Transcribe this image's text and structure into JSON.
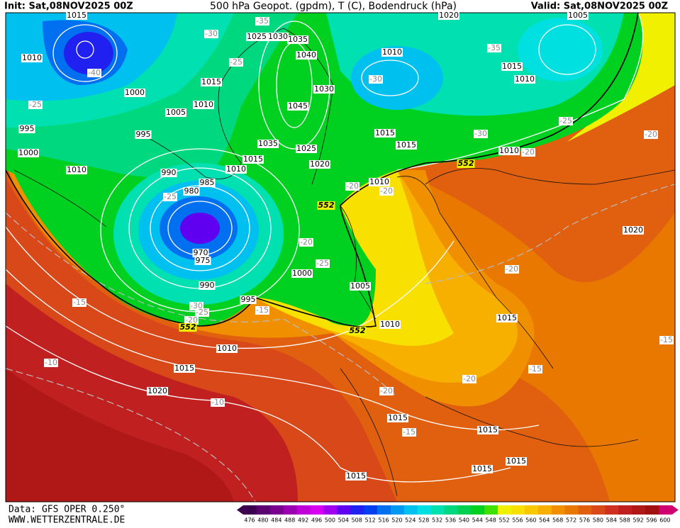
{
  "header": {
    "init": "Init: Sat,08NOV2025 00Z",
    "title": "500 hPa Geopot. (gpdm), T (C), Bodendruck (hPa)",
    "valid": "Valid: Sat,08NOV2025 00Z"
  },
  "footer": {
    "source": "Data: GFS OPER 0.250°",
    "website": "WWW.WETTERZENTRALE.DE"
  },
  "colorbar": {
    "labels": [
      476,
      480,
      484,
      488,
      492,
      496,
      500,
      504,
      508,
      512,
      516,
      520,
      524,
      528,
      532,
      536,
      540,
      544,
      548,
      552,
      556,
      560,
      564,
      568,
      572,
      576,
      580,
      584,
      588,
      592,
      596,
      600
    ],
    "colors": [
      "#3c0050",
      "#5a0070",
      "#7a0090",
      "#9a00b0",
      "#c000d8",
      "#d800f0",
      "#a000f0",
      "#6000f0",
      "#2020f0",
      "#0040f0",
      "#0070f0",
      "#0098f0",
      "#00c0f0",
      "#00e0e0",
      "#00e0b0",
      "#00d880",
      "#00d050",
      "#00d020",
      "#40e000",
      "#f0f000",
      "#f8e000",
      "#f8c800",
      "#f8b000",
      "#f09000",
      "#e87800",
      "#e06010",
      "#d84818",
      "#d03020",
      "#c02020",
      "#b01818",
      "#a01010",
      "#d00070"
    ]
  },
  "map_labels": {
    "pressure": [
      1015,
      1010,
      1000,
      1005,
      1010,
      1015,
      995,
      1000,
      1010,
      995,
      990,
      985,
      980,
      970,
      975,
      990,
      995,
      1000,
      1005,
      1010,
      1010,
      1015,
      1020,
      1015,
      1015,
      1015,
      1015,
      1015,
      1015,
      1020,
      1010,
      1015,
      1015,
      1020,
      1025,
      1035,
      1015,
      1010,
      1045,
      1030,
      1040,
      1035,
      1025,
      1030,
      1010,
      1015,
      1010,
      1020,
      1005,
      1010
    ],
    "temperature": [
      -30,
      -25,
      -35,
      -40,
      -25,
      -25,
      -20,
      -25,
      -30,
      -25,
      -20,
      -15,
      -15,
      -10,
      -10,
      -20,
      -15,
      -15,
      -20,
      -20,
      -20,
      -20,
      -30,
      -35,
      -25,
      -30,
      -20,
      -20,
      -15
    ],
    "geopotential": [
      552,
      552,
      552,
      552
    ]
  }
}
